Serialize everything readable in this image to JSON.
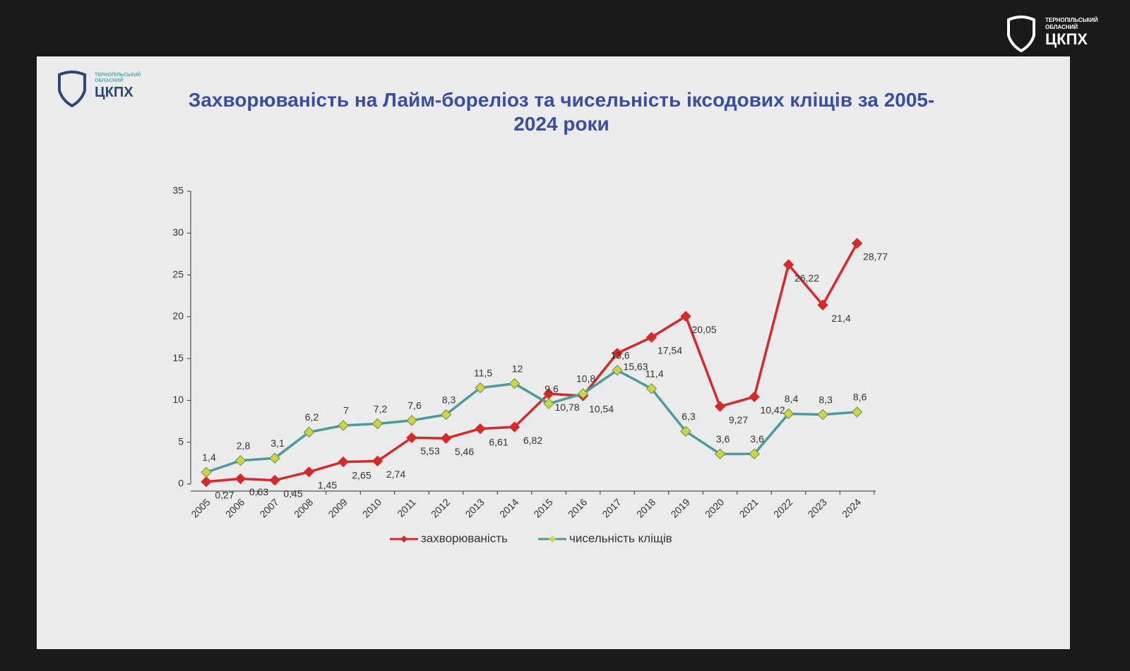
{
  "chart_data": {
    "type": "line",
    "title": "Захворюваність на Лайм-бореліоз та чисельність іксодових кліщів за 2005-2024 роки",
    "logo": {
      "region": "ТЕРНОПІЛЬСЬКИЙ",
      "kind": "ОБЛАСНИЙ",
      "name": "ЦКПХ"
    },
    "categories": [
      "2005",
      "2006",
      "2007",
      "2008",
      "2009",
      "2010",
      "2011",
      "2012",
      "2013",
      "2014",
      "2015",
      "2016",
      "2017",
      "2018",
      "2019",
      "2020",
      "2021",
      "2022",
      "2023",
      "2024"
    ],
    "series": [
      {
        "name": "захворюваність",
        "color": "#d42a2a",
        "marker_fill": "#d42a2a",
        "values": [
          0.27,
          0.63,
          0.45,
          1.45,
          2.65,
          2.74,
          5.53,
          5.46,
          6.61,
          6.82,
          10.78,
          10.54,
          15.63,
          17.54,
          20.05,
          9.27,
          10.42,
          26.22,
          21.4,
          28.77
        ],
        "value_labels": [
          "0,27",
          "0,63",
          "0,45",
          "1,45",
          "2,65",
          "2,74",
          "5,53",
          "5,46",
          "6,61",
          "6,82",
          "10,78",
          "10,54",
          "15,63",
          "17,54",
          "20,05",
          "9,27",
          "10,42",
          "26,22",
          "21,4",
          "28,77"
        ]
      },
      {
        "name": "чисельність кліщів",
        "color": "#4c9a9a",
        "marker_fill": "#c9d64a",
        "values": [
          1.4,
          2.8,
          3.1,
          6.2,
          7,
          7.2,
          7.6,
          8.3,
          11.5,
          12,
          9.6,
          10.8,
          13.6,
          11.4,
          6.3,
          3.6,
          3.6,
          8.4,
          8.3,
          8.6
        ],
        "value_labels": [
          "1,4",
          "2,8",
          "3,1",
          "6,2",
          "7",
          "7,2",
          "7,6",
          "8,3",
          "11,5",
          "12",
          "9,6",
          "10,8",
          "13,6",
          "11,4",
          "6,3",
          "3,6",
          "3,6",
          "8,4",
          "8,3",
          "8,6"
        ]
      }
    ],
    "ylim": [
      0,
      35
    ],
    "yticks": [
      0,
      5,
      10,
      15,
      20,
      25,
      30,
      35
    ]
  }
}
